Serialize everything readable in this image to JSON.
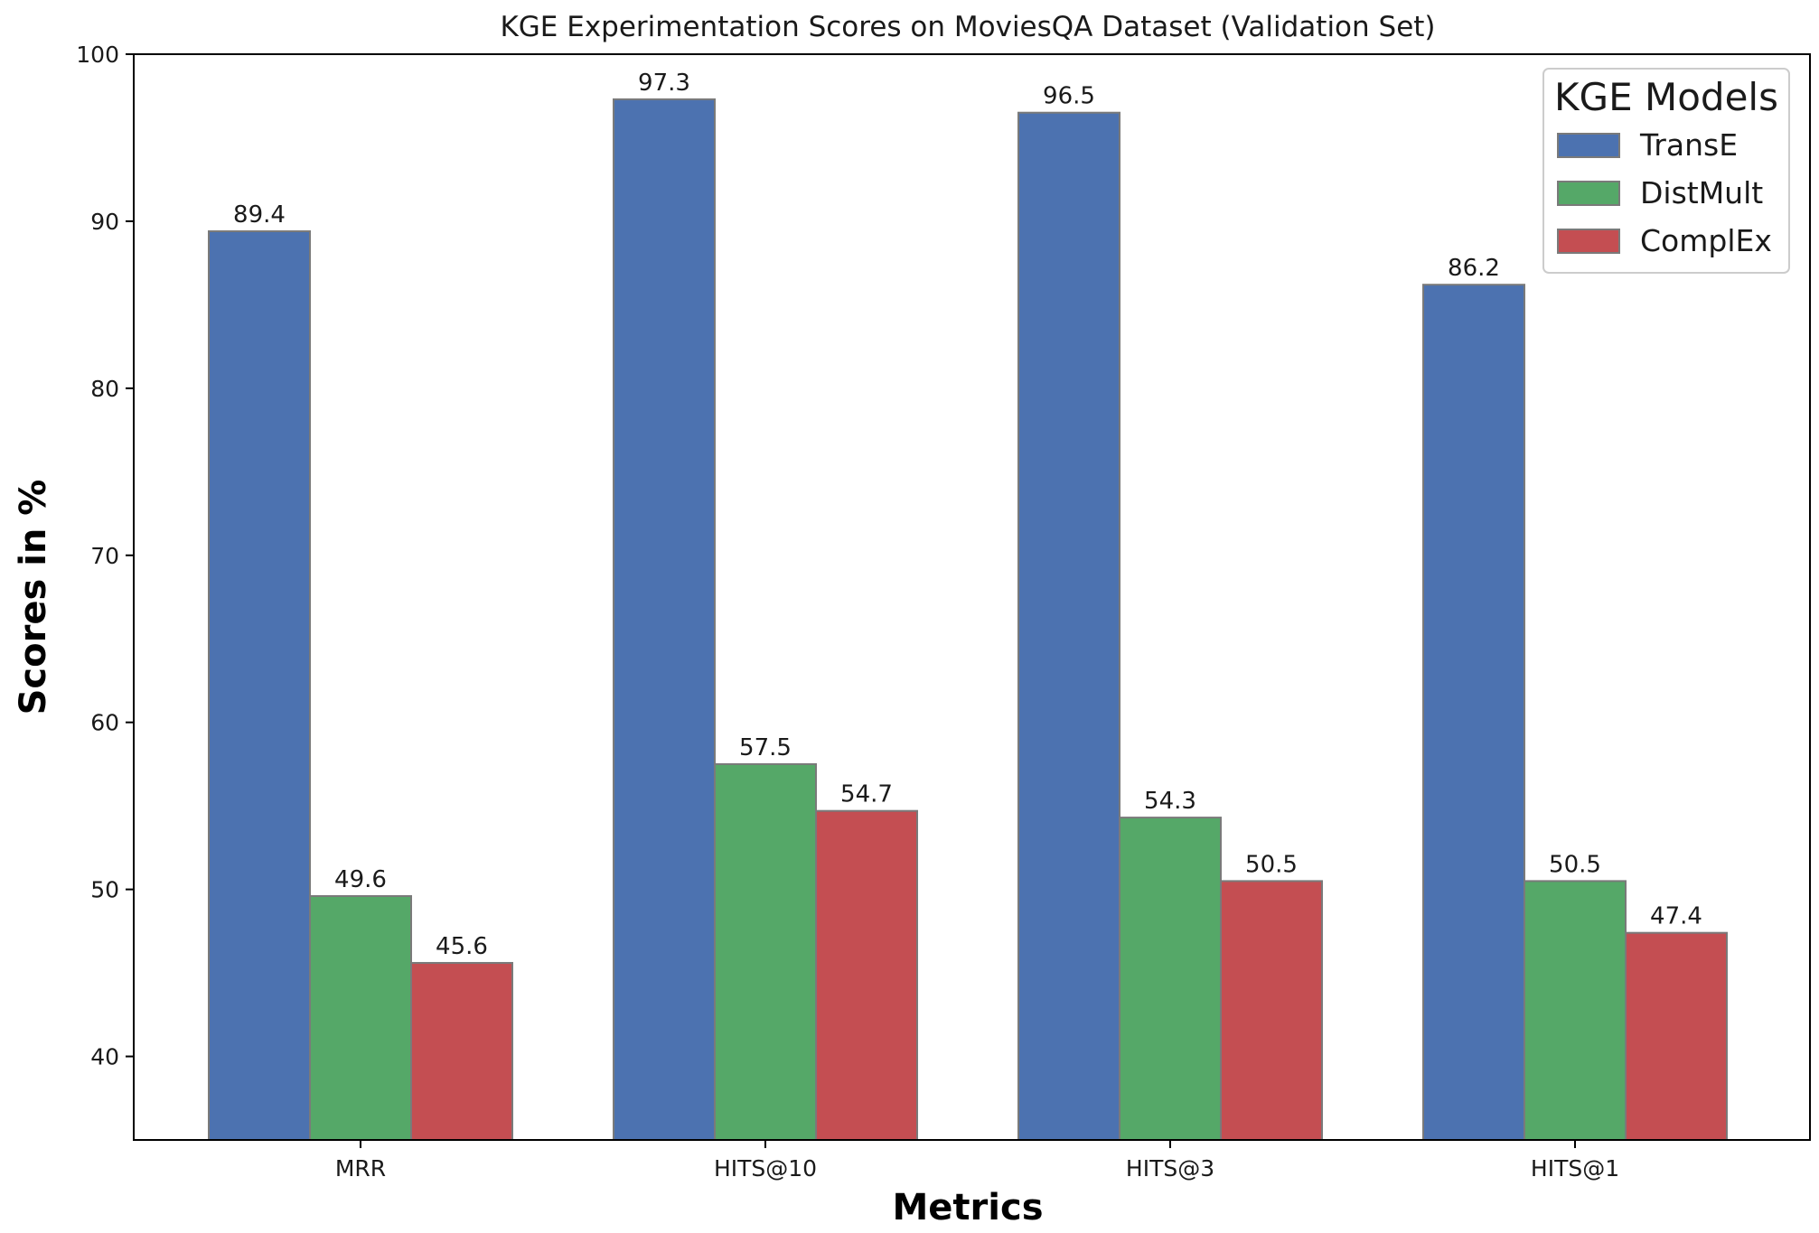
{
  "chart_data": {
    "type": "bar",
    "title": "KGE Experimentation Scores on MoviesQA Dataset (Validation Set)",
    "xlabel": "Metrics",
    "ylabel": "Scores in %",
    "categories": [
      "MRR",
      "HITS@10",
      "HITS@3",
      "HITS@1"
    ],
    "series": [
      {
        "name": "TransE",
        "color": "#4c72b0",
        "values": [
          89.4,
          97.3,
          96.5,
          86.2
        ],
        "labels": [
          "89.4",
          "97.3",
          "96.5",
          "86.2"
        ]
      },
      {
        "name": "DistMult",
        "color": "#55a868",
        "values": [
          49.6,
          57.5,
          54.3,
          50.5
        ],
        "labels": [
          "49.6",
          "57.5",
          "54.3",
          "50.5"
        ]
      },
      {
        "name": "ComplEx",
        "color": "#c44e52",
        "values": [
          45.6,
          54.7,
          50.5,
          47.4
        ],
        "labels": [
          "45.6",
          "54.7",
          "50.5",
          "47.4"
        ]
      }
    ],
    "ylim": [
      35,
      100
    ],
    "yticks": [
      40,
      50,
      60,
      70,
      80,
      90,
      100
    ],
    "ytick_labels": [
      "40",
      "50",
      "60",
      "70",
      "80",
      "90",
      "100"
    ],
    "legend_title": "KGE Models",
    "legend_position": "top-right",
    "grid": false
  }
}
